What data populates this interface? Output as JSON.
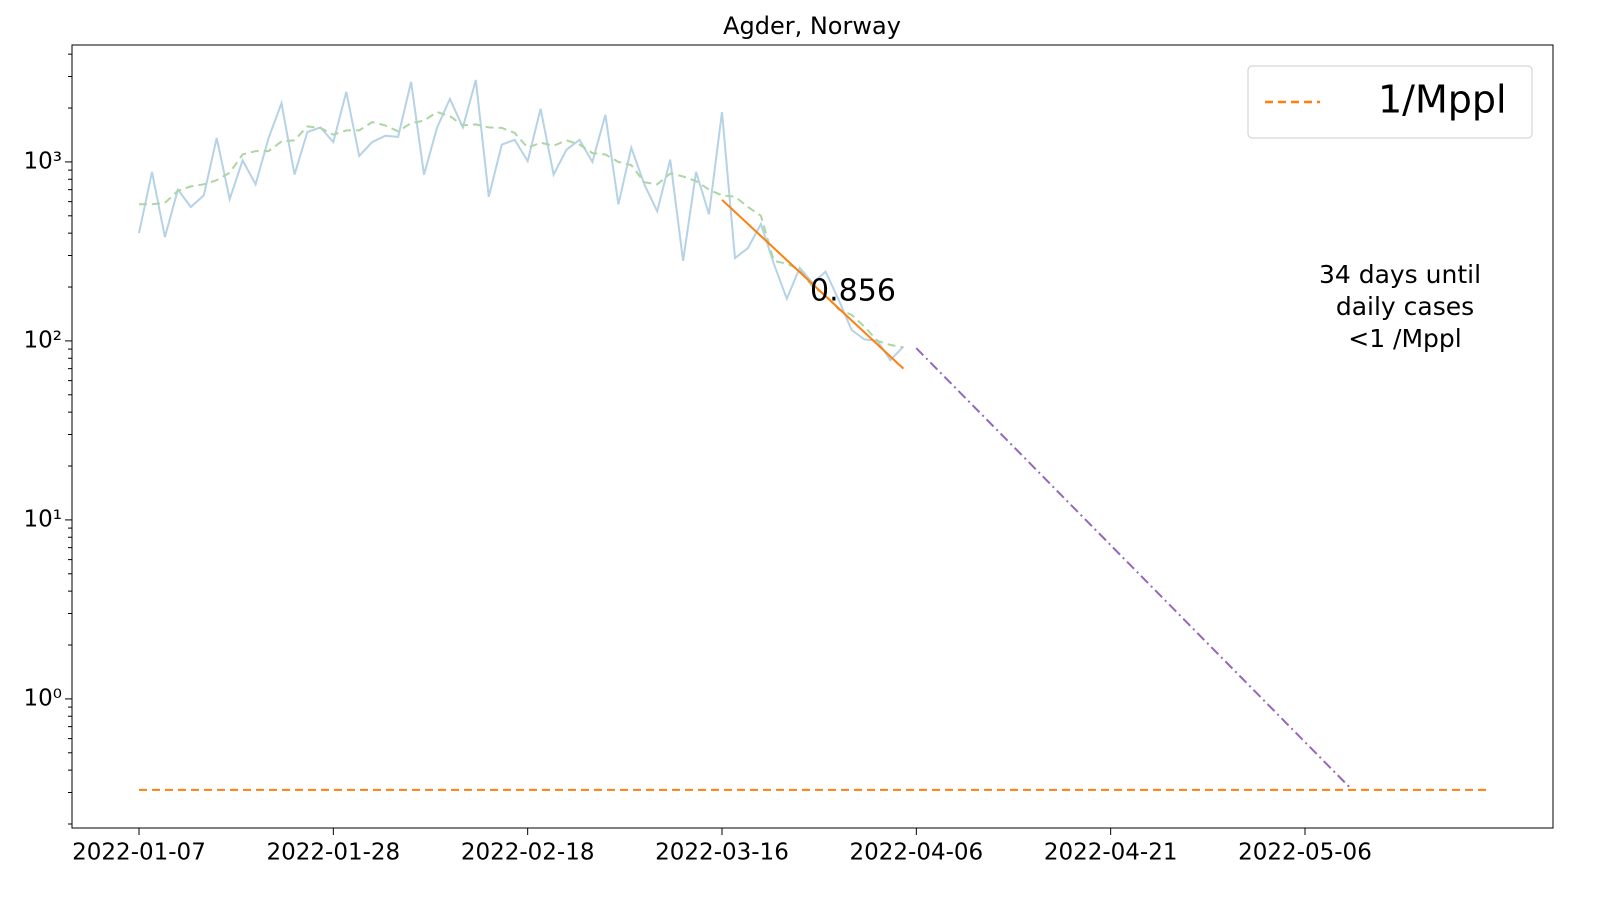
{
  "chart_data": {
    "type": "line",
    "title": "Agder, Norway",
    "log_y": true,
    "xlim": [
      -7.24,
      152.8
    ],
    "ylim": [
      0.19,
      4500
    ],
    "xticks": [
      {
        "value": 0,
        "label": "2022-01-07"
      },
      {
        "value": 21,
        "label": "2022-01-28"
      },
      {
        "value": 42,
        "label": "2022-02-18"
      },
      {
        "value": 63,
        "label": "2022-03-16"
      },
      {
        "value": 84,
        "label": "2022-04-06"
      },
      {
        "value": 105,
        "label": "2022-04-21"
      },
      {
        "value": 126,
        "label": "2022-05-06"
      }
    ],
    "yticks": [
      {
        "value": 1,
        "label": "10⁰"
      },
      {
        "value": 10,
        "label": "10¹"
      },
      {
        "value": 100,
        "label": "10²"
      },
      {
        "value": 1000,
        "label": "10³"
      }
    ],
    "yminorticks": [
      0.2,
      0.3,
      0.4,
      0.5,
      0.6,
      0.7,
      0.8,
      0.9,
      2,
      3,
      4,
      5,
      6,
      7,
      8,
      9,
      20,
      30,
      40,
      50,
      60,
      70,
      80,
      90,
      200,
      300,
      400,
      500,
      600,
      700,
      800,
      900,
      2000,
      3000,
      4000
    ],
    "x": [
      0,
      1.4,
      2.8,
      4.2,
      5.6,
      7,
      8.4,
      9.8,
      11.2,
      12.6,
      14,
      15.4,
      16.8,
      18.2,
      19.6,
      21,
      22.4,
      23.8,
      25.2,
      26.6,
      28,
      29.4,
      30.8,
      32.2,
      33.6,
      35,
      36.4,
      37.8,
      39.2,
      40.6,
      42,
      43.4,
      44.8,
      46.2,
      47.6,
      49,
      50.4,
      51.8,
      53.2,
      54.6,
      56,
      57.4,
      58.8,
      60.2,
      61.6,
      63,
      64.4,
      65.8,
      67.2,
      68.6,
      70,
      71.4,
      72.8,
      74.2,
      75.6,
      77,
      78.4,
      79.8,
      81.2,
      82.6
    ],
    "series": [
      {
        "color": "#b5d2e6",
        "style": "solid",
        "values": [
          400,
          880,
          380,
          700,
          560,
          650,
          1360,
          620,
          1020,
          750,
          1360,
          2130,
          850,
          1470,
          1560,
          1290,
          2460,
          1080,
          1290,
          1400,
          1380,
          2800,
          850,
          1550,
          2250,
          1560,
          2870,
          640,
          1250,
          1330,
          1010,
          1980,
          850,
          1170,
          1330,
          1000,
          1830,
          580,
          1200,
          750,
          530,
          1030,
          280,
          880,
          510,
          1900,
          290,
          330,
          450,
          270,
          172,
          256,
          210,
          244,
          170,
          115,
          102,
          100,
          78,
          93
        ]
      },
      {
        "color": "#acd6a3",
        "style": "dashed",
        "values": [
          580,
          580,
          590,
          690,
          730,
          750,
          790,
          870,
          1100,
          1150,
          1150,
          1300,
          1320,
          1580,
          1550,
          1420,
          1500,
          1500,
          1670,
          1600,
          1480,
          1650,
          1700,
          1900,
          1800,
          1600,
          1620,
          1560,
          1550,
          1450,
          1200,
          1280,
          1230,
          1320,
          1250,
          1120,
          1100,
          1000,
          960,
          770,
          750,
          860,
          830,
          780,
          700,
          650,
          640,
          560,
          500,
          280,
          270,
          250,
          200,
          180,
          150,
          140,
          120,
          100,
          95,
          92
        ]
      },
      {
        "color": "#ff7f0e",
        "style": "solid",
        "x": [
          63,
          82.6
        ],
        "values": [
          614,
          70
        ]
      },
      {
        "color": "#9467bd",
        "style": "dashdot",
        "x": [
          84,
          131.1
        ],
        "values": [
          91,
          0.31
        ]
      },
      {
        "name": "1/Mppl",
        "color": "#ff7f0e",
        "style": "dashed",
        "x": [
          0,
          145.7
        ],
        "values": [
          0.31,
          0.31
        ]
      }
    ],
    "annotations": [
      {
        "text": "0.856",
        "color": "#ff7f0e"
      },
      {
        "lines": [
          "34 days until",
          "daily cases",
          "<1 /Mppl"
        ],
        "color": "#9467bd"
      }
    ],
    "legend": "upper right"
  }
}
